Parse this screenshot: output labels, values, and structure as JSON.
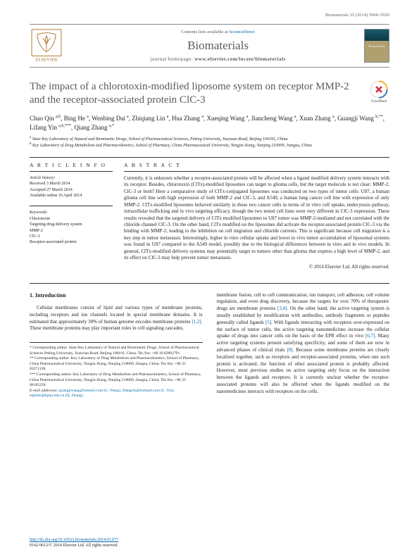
{
  "header": {
    "citation": "Biomaterials 35 (2014) 5908–5920"
  },
  "journal_bar": {
    "contents_prefix": "Contents lists available at ",
    "contents_link": "ScienceDirect",
    "name": "Biomaterials",
    "homepage_prefix": "journal homepage: ",
    "homepage": "www.elsevier.com/locate/biomaterials",
    "logo_label": "ELSEVIER",
    "cover_label": "Biomaterials"
  },
  "colors": {
    "elsevier_orange": "#ed7d31",
    "link_blue": "#0066aa",
    "heading_gray": "#5a5a5a"
  },
  "title": "The impact of a chlorotoxin-modified liposome system on receptor MMP-2 and the receptor-associated protein ClC-3",
  "crossmark": "CrossMark",
  "authors_html": "Chao Qin <sup>a,b</sup>, Bing He <sup>a</sup>, Wenbing Dai <sup>a</sup>, Zhiqiang Lin <sup>a</sup>, Hua Zhang <sup>a</sup>, Xueqing Wang <sup>a</sup>, Jiancheng Wang <sup>a</sup>, Xuan Zhang <sup>a</sup>, Guangji Wang <sup>b,**</sup>, Lifang Yin <sup>a,b,***</sup>, Qiang Zhang <sup>a,*</sup>",
  "affiliations": [
    "<sup>a</sup> State Key Laboratory of Natural and Biomimetic Drugs, School of Pharmaceutical Sciences, Peking University, Xueyuan Road, Beijing 100191, China",
    "<sup>b</sup> Key Laboratory of Drug Metabolism and Pharmacokinetics, School of Pharmacy, China Pharmaceutical University, Tongjia Xiang, Nanjing 210009, Jiangsu, China"
  ],
  "article_info": {
    "head": "A R T I C L E  I N F O",
    "history_label": "Article history:",
    "received": "Received 3 March 2014",
    "accepted": "Accepted 27 March 2014",
    "online": "Available online 16 April 2014",
    "keywords_label": "Keywords:",
    "keywords": [
      "Chlorotoxin",
      "Targeting drug delivery system",
      "MMP-2",
      "ClC-3",
      "Receptor-associated protein"
    ]
  },
  "abstract": {
    "head": "A B S T R A C T",
    "text": "Currently, it is unknown whether a receptor-associated protein will be affected when a ligand modified delivery system interacts with its receptor. Besides, chlorotoxin (ClTx)-modified liposomes can target to glioma cells, but the target molecule is not clear: MMP-2, ClC-3 or both? Here a comparative study of ClTx-conjugated liposomes was conducted on two types of tumor cells: U87, a human glioma cell line with high expression of both MMP-2 and ClC-3, and A549, a human lung cancer cell line with expression of only MMP-2. ClTx-modified liposomes behaved similarly in these two cancer cells in terms of in vitro cell uptake, endocytosis pathway, intracellular trafficking and in vivo targeting efficacy, though the two tested cell lines were very different in ClC-3 expression. These results revealed that the targeted delivery of ClTx modified liposomes to U87 tumor was MMP-2-mediated and not correlated with the chloride channel ClC-3. On the other hand, ClTx modified on the liposomes did activate the receptor-associated protein ClC-3 via the binding with MMP-2, leading to the inhibition on cell migration and chloride currents. This is significant because cell migration is a key step in tumor metastasis. Interestingly, higher in vitro cellular uptake and lower in vivo tumor accumulation of liposomal systems was found in U87 compared to the A549 model, possibly due to the biological differences between in vitro and in vivo models. In general, ClTx-modified delivery systems may potentially target to tumors other than glioma that express a high level of MMP-2, and its effect on ClC-3 may help prevent tumor metastasis.",
    "copyright": "© 2014 Elsevier Ltd. All rights reserved."
  },
  "intro": {
    "head": "1. Introduction",
    "col1": "Cellular membranes consist of lipid and various types of membrane proteins, including receptors and ion channels located in special membrane domains. It is estimated that approximately 30% of human genome encodes membrane proteins [1,2]. These membrane proteins may play important roles in cell signaling cascades,",
    "col2": "membrane fusion, cell to cell communication, ion transport, cell adhesion, cell volume regulation, and even drug discovery, because the targets for over 70% of therapeutic drugs are membrane proteins [3,4]. On the other hand, the active targeting system is usually established by modification with antibodies, antibody fragments or peptides generally called ligands [5]. With ligands interacting with receptors over-expressed on the surface of tumor cells, the active targeting nanomedicines increase the cellular uptake of drugs into cancer cells on the basis of the EPR effect in vivo [6,7]. Many active targeting systems present satisfying specificity, and some of them are now in advanced phases of clinical trials [8]. Because some membrane proteins are closely localized together, such as receptors and receptor-associated proteins, when one such protein is activated, the function of other associated protein is probably affected. However, most previous studies on active targeting only focus on the interaction between the ligands and receptors. It is currently unclear whether the receptor-associated proteins will also be affected when the ligands modified on the nanomedicines interacts with receptors on the cells."
  },
  "footnotes": {
    "corr1": "* Corresponding author. State Key Laboratory of Natural and Biomimetic Drugs, School of Pharmaceutical Sciences Peking University, Xueyuan Road, Beijing 100191, China. Tel./fax: +86 10 82802791.",
    "corr2": "** Corresponding author. Key Laboratory of Drug Metabolism and Pharmacokinetics, School of Pharmacy, China Pharmaceutical University, Tongjia Xiang, Nanjing 210009, Jiangsu, China. Tel./fax: +86 25 83271128.",
    "corr3": "*** Corresponding author. Key Laboratory of Drug Metabolism and Pharmacokinetics, School of Pharmacy, China Pharmaceutical University, Tongjia Xiang, Nanjing 210009, Jiangsu, China. Tel./fax: +86 25 86185258.",
    "emails_label": "E-mail addresses: ",
    "emails": "guangjiwang@hotmail.com (G. Wang), lifangyin@hotmail.com (L. Yin), zqdodo@bjmu.edu.cn (Q. Zhang)."
  },
  "footer": {
    "doi": "http://dx.doi.org/10.1016/j.biomaterials.2014.03.077",
    "issn": "0142-9612/© 2014 Elsevier Ltd. All rights reserved."
  }
}
